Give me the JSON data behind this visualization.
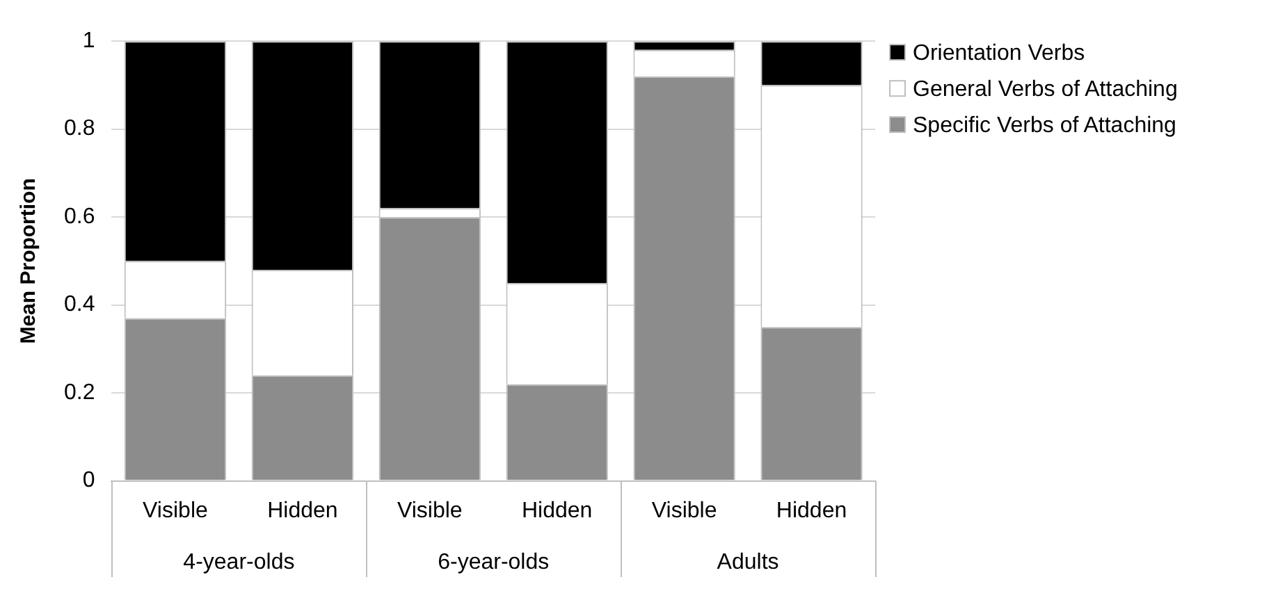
{
  "chart_data": {
    "type": "bar",
    "ylabel": "Mean Proportion",
    "categories": [
      "Visible",
      "Hidden",
      "Visible",
      "Hidden",
      "Visible",
      "Hidden"
    ],
    "series": [
      {
        "name": "Specific Verbs of Attaching",
        "color": "#8c8c8c",
        "values": [
          0.37,
          0.24,
          0.6,
          0.22,
          0.92,
          0.35
        ]
      },
      {
        "name": "General Verbs of Attaching",
        "color": "#ffffff",
        "values": [
          0.13,
          0.24,
          0.02,
          0.23,
          0.06,
          0.55
        ]
      },
      {
        "name": "Orientation Verbs",
        "color": "#000000",
        "values": [
          0.5,
          0.52,
          0.38,
          0.55,
          0.02,
          0.1
        ]
      }
    ],
    "stacked": true,
    "ylim": [
      0,
      1
    ],
    "yticks": [
      0,
      0.2,
      0.4,
      0.6,
      0.8,
      1
    ],
    "grid": "y",
    "legend": "top right",
    "annotations": [
      "4-year-olds",
      "6-year-olds",
      "Adults"
    ]
  }
}
